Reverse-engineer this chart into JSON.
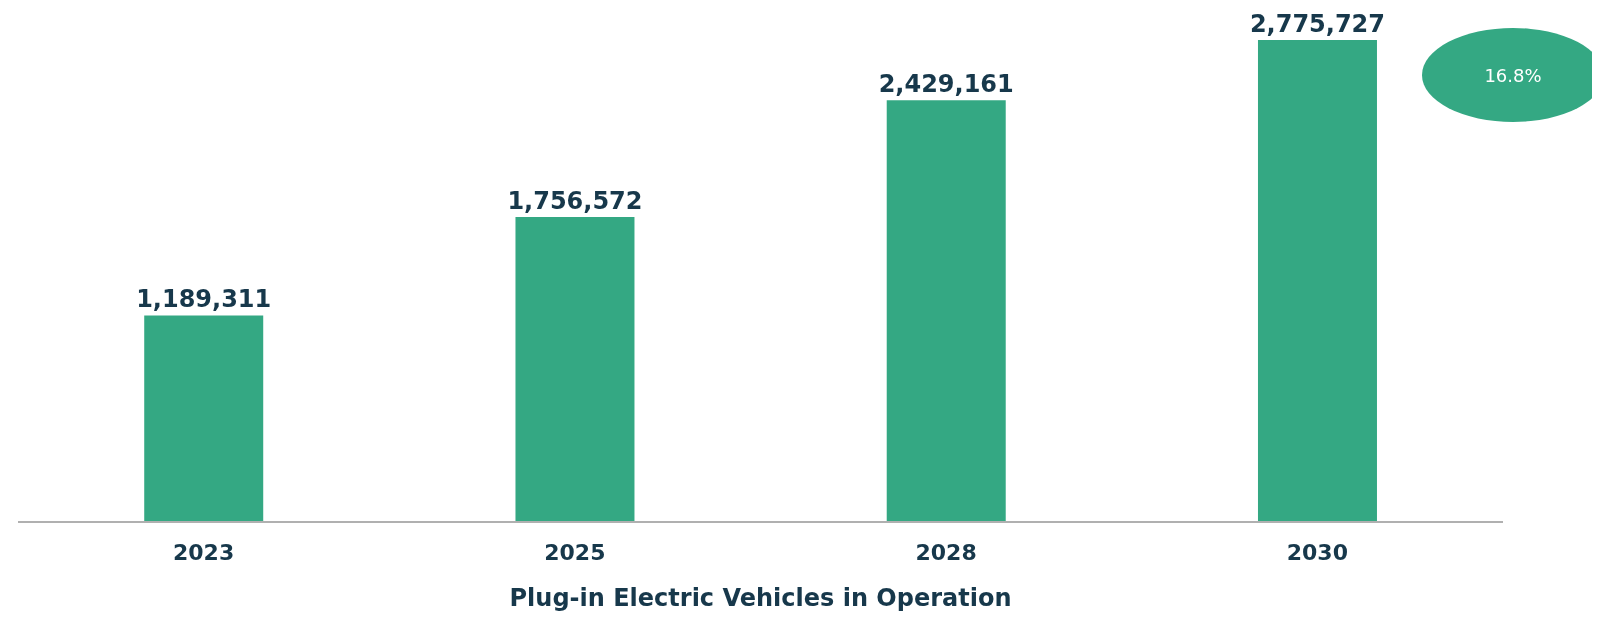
{
  "chart_data": {
    "type": "bar",
    "xlabel": "Plug-in Electric Vehicles in Operation",
    "categories": [
      "2023",
      "2025",
      "2028",
      "2030"
    ],
    "values": [
      1189311,
      1756572,
      2429161,
      2775727
    ],
    "color": "#34a883",
    "value_labels": [
      "1,189,311",
      "1,756,572",
      "2,429,161",
      "2,775,727"
    ],
    "annotations": [
      "16.8%"
    ]
  }
}
